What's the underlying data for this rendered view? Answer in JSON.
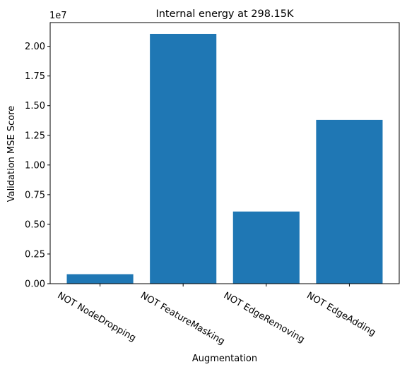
{
  "chart_data": {
    "type": "bar",
    "title": "Internal energy at 298.15K",
    "xlabel": "Augmentation",
    "ylabel": "Validation MSE Score",
    "y_offset_label": "1e7",
    "categories": [
      "NOT NodeDropping",
      "NOT FeatureMasking",
      "NOT EdgeRemoving",
      "NOT EdgeAdding"
    ],
    "values": [
      800000,
      21050000,
      6080000,
      13800000
    ],
    "ylim": [
      0,
      22000000
    ],
    "yticks": [
      0,
      2500000,
      5000000,
      7500000,
      10000000,
      12500000,
      15000000,
      17500000,
      20000000
    ],
    "ytick_labels": [
      "0.00",
      "0.25",
      "0.50",
      "0.75",
      "1.00",
      "1.25",
      "1.50",
      "1.75",
      "2.00"
    ],
    "bar_color": "#1f77b4",
    "grid": false,
    "legend": "none"
  }
}
